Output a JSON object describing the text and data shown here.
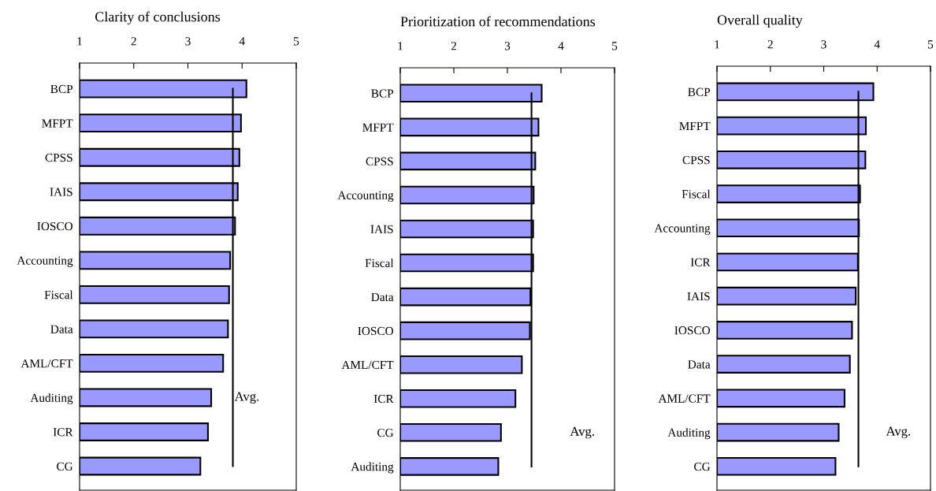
{
  "chart_data": [
    {
      "type": "bar",
      "orientation": "horizontal",
      "title": "Clarity of conclusions",
      "categories": [
        "BCP",
        "MFPT",
        "CPSS",
        "IAIS",
        "IOSCO",
        "Accounting",
        "Fiscal",
        "Data",
        "AML/CFT",
        "Auditing",
        "ICR",
        "CG"
      ],
      "values": [
        4.08,
        3.98,
        3.95,
        3.92,
        3.87,
        3.78,
        3.76,
        3.74,
        3.65,
        3.43,
        3.37,
        3.23
      ],
      "color": "#9999ff",
      "xlim": [
        1,
        5
      ],
      "xticks": [
        1,
        2,
        3,
        4,
        5
      ],
      "grid": false,
      "ref_lines": [
        {
          "axis": "x",
          "value": 3.83,
          "label": "Avg."
        }
      ]
    },
    {
      "type": "bar",
      "orientation": "horizontal",
      "title": "Prioritization of recommendations",
      "categories": [
        "BCP",
        "MFPT",
        "CPSS",
        "Accounting",
        "IAIS",
        "Fiscal",
        "Data",
        "IOSCO",
        "AML/CFT",
        "ICR",
        "CG",
        "Auditing"
      ],
      "values": [
        3.64,
        3.58,
        3.52,
        3.49,
        3.48,
        3.48,
        3.43,
        3.42,
        3.27,
        3.15,
        2.88,
        2.83
      ],
      "color": "#9999ff",
      "xlim": [
        1,
        5
      ],
      "xticks": [
        1,
        2,
        3,
        4,
        5
      ],
      "grid": false,
      "ref_lines": [
        {
          "axis": "x",
          "value": 3.45,
          "label": "Avg."
        }
      ]
    },
    {
      "type": "bar",
      "orientation": "horizontal",
      "title": "Overall quality",
      "categories": [
        "BCP",
        "MFPT",
        "CPSS",
        "Fiscal",
        "Accounting",
        "ICR",
        "IAIS",
        "IOSCO",
        "Data",
        "AML/CFT",
        "Auditing",
        "CG"
      ],
      "values": [
        3.93,
        3.79,
        3.78,
        3.68,
        3.66,
        3.64,
        3.6,
        3.53,
        3.49,
        3.39,
        3.28,
        3.22
      ],
      "color": "#9999ff",
      "xlim": [
        1,
        5
      ],
      "xticks": [
        1,
        2,
        3,
        4,
        5
      ],
      "grid": false,
      "ref_lines": [
        {
          "axis": "x",
          "value": 3.65,
          "label": "Avg."
        }
      ]
    }
  ]
}
